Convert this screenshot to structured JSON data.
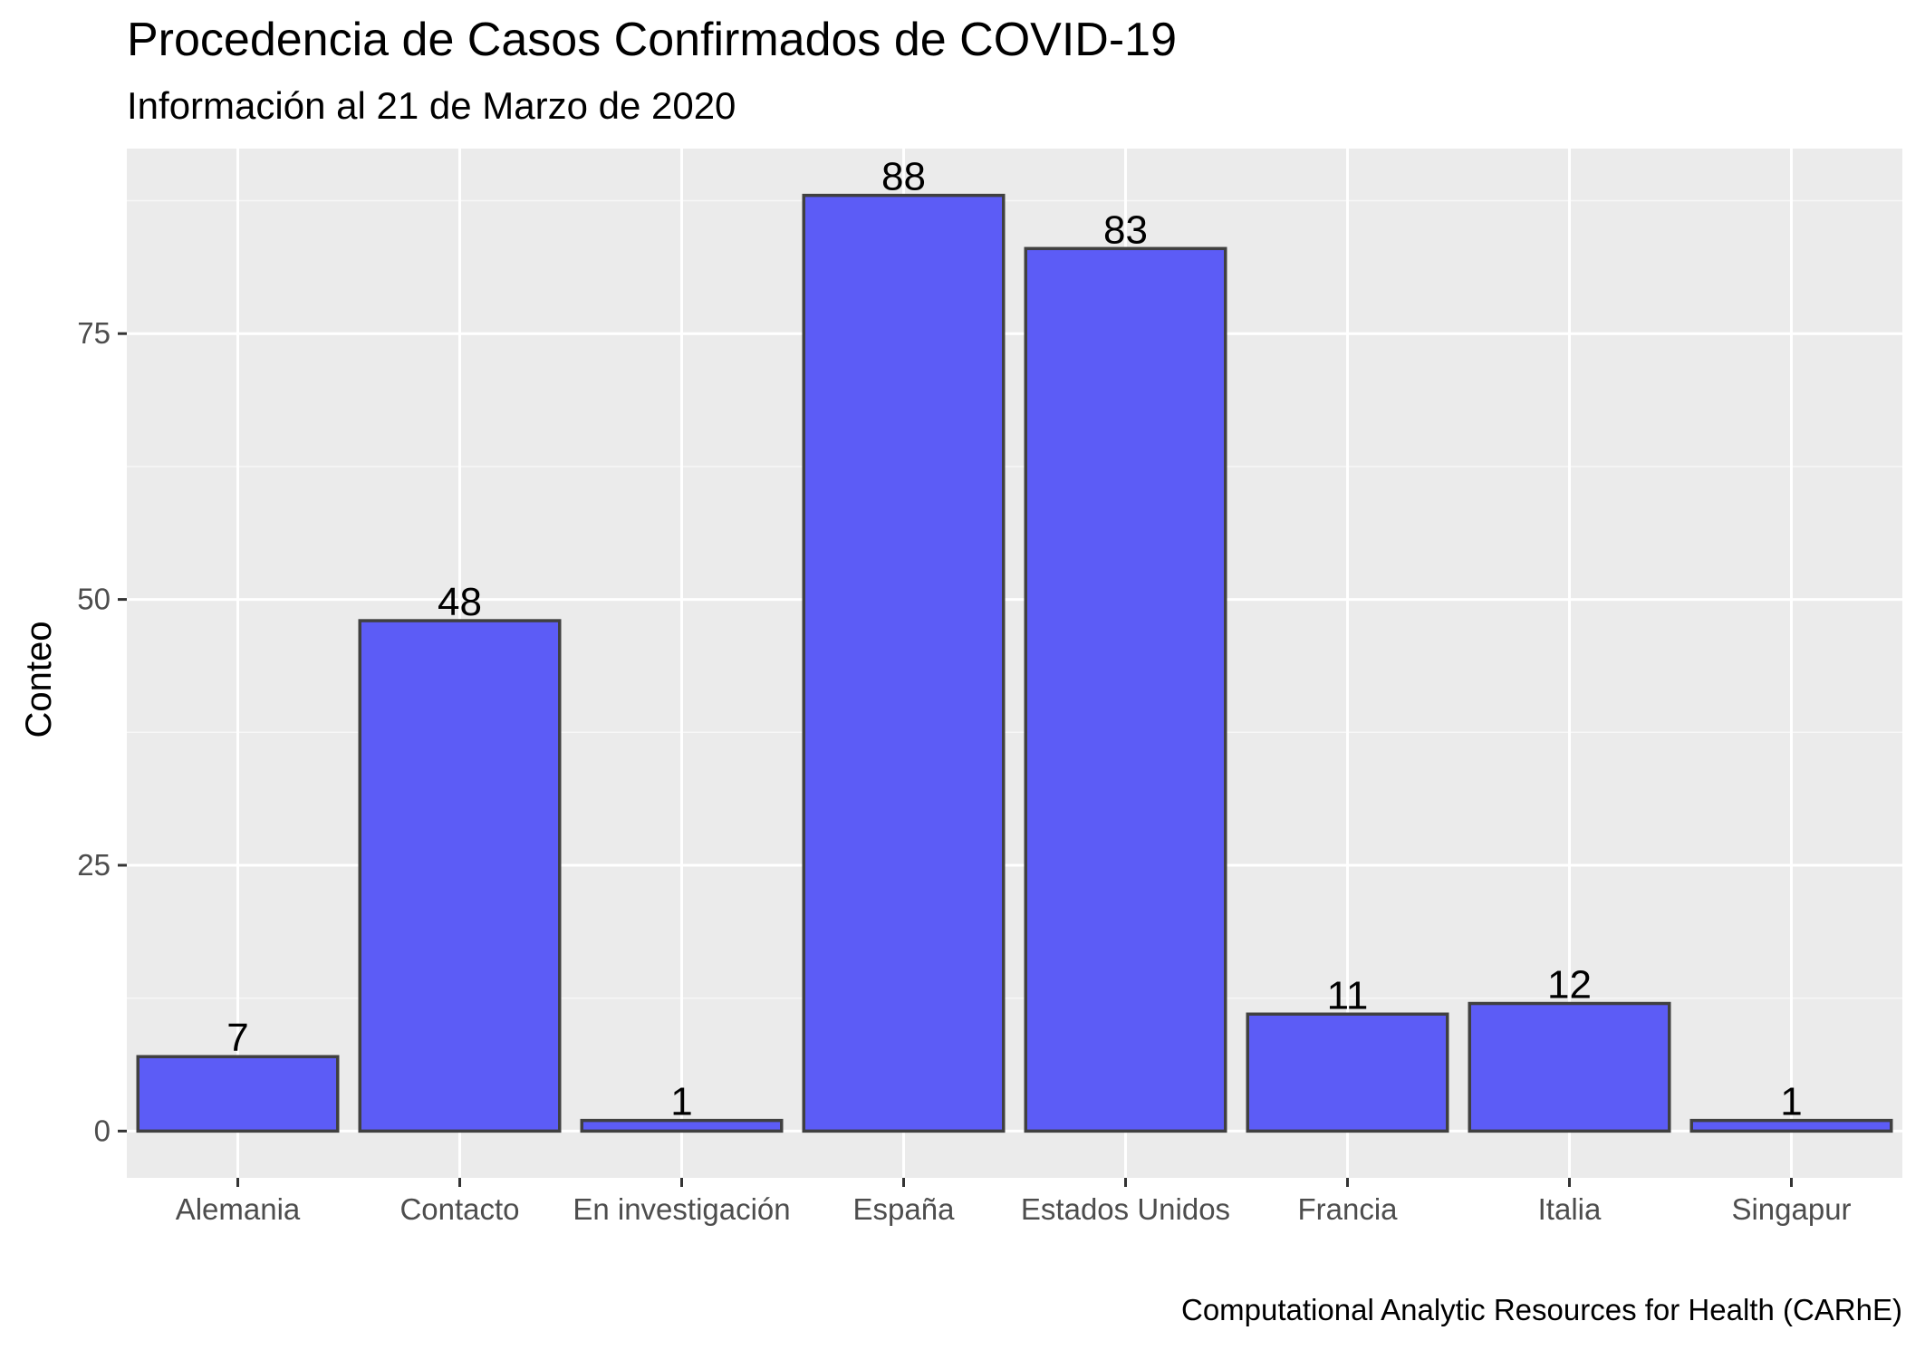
{
  "chart_data": {
    "type": "bar",
    "title": "Procedencia de Casos Confirmados de COVID-19",
    "subtitle": "Información al 21 de Marzo de 2020",
    "caption": "Computational Analytic Resources for Health (CARhE)",
    "xlabel": "",
    "ylabel": "Conteo",
    "categories": [
      "Alemania",
      "Contacto",
      "En investigación",
      "España",
      "Estados Unidos",
      "Francia",
      "Italia",
      "Singapur"
    ],
    "values": [
      7,
      48,
      1,
      88,
      83,
      11,
      12,
      1
    ],
    "ylim": [
      -4.4,
      92.4
    ],
    "yticks": [
      0,
      25,
      50,
      75
    ],
    "grid": true,
    "legend": "none",
    "colors": {
      "bar_fill": "#5c5cf6",
      "bar_stroke": "#404040",
      "panel_bg": "#ebebeb",
      "grid_major": "#ffffff",
      "grid_minor": "#f7f7f7"
    }
  }
}
